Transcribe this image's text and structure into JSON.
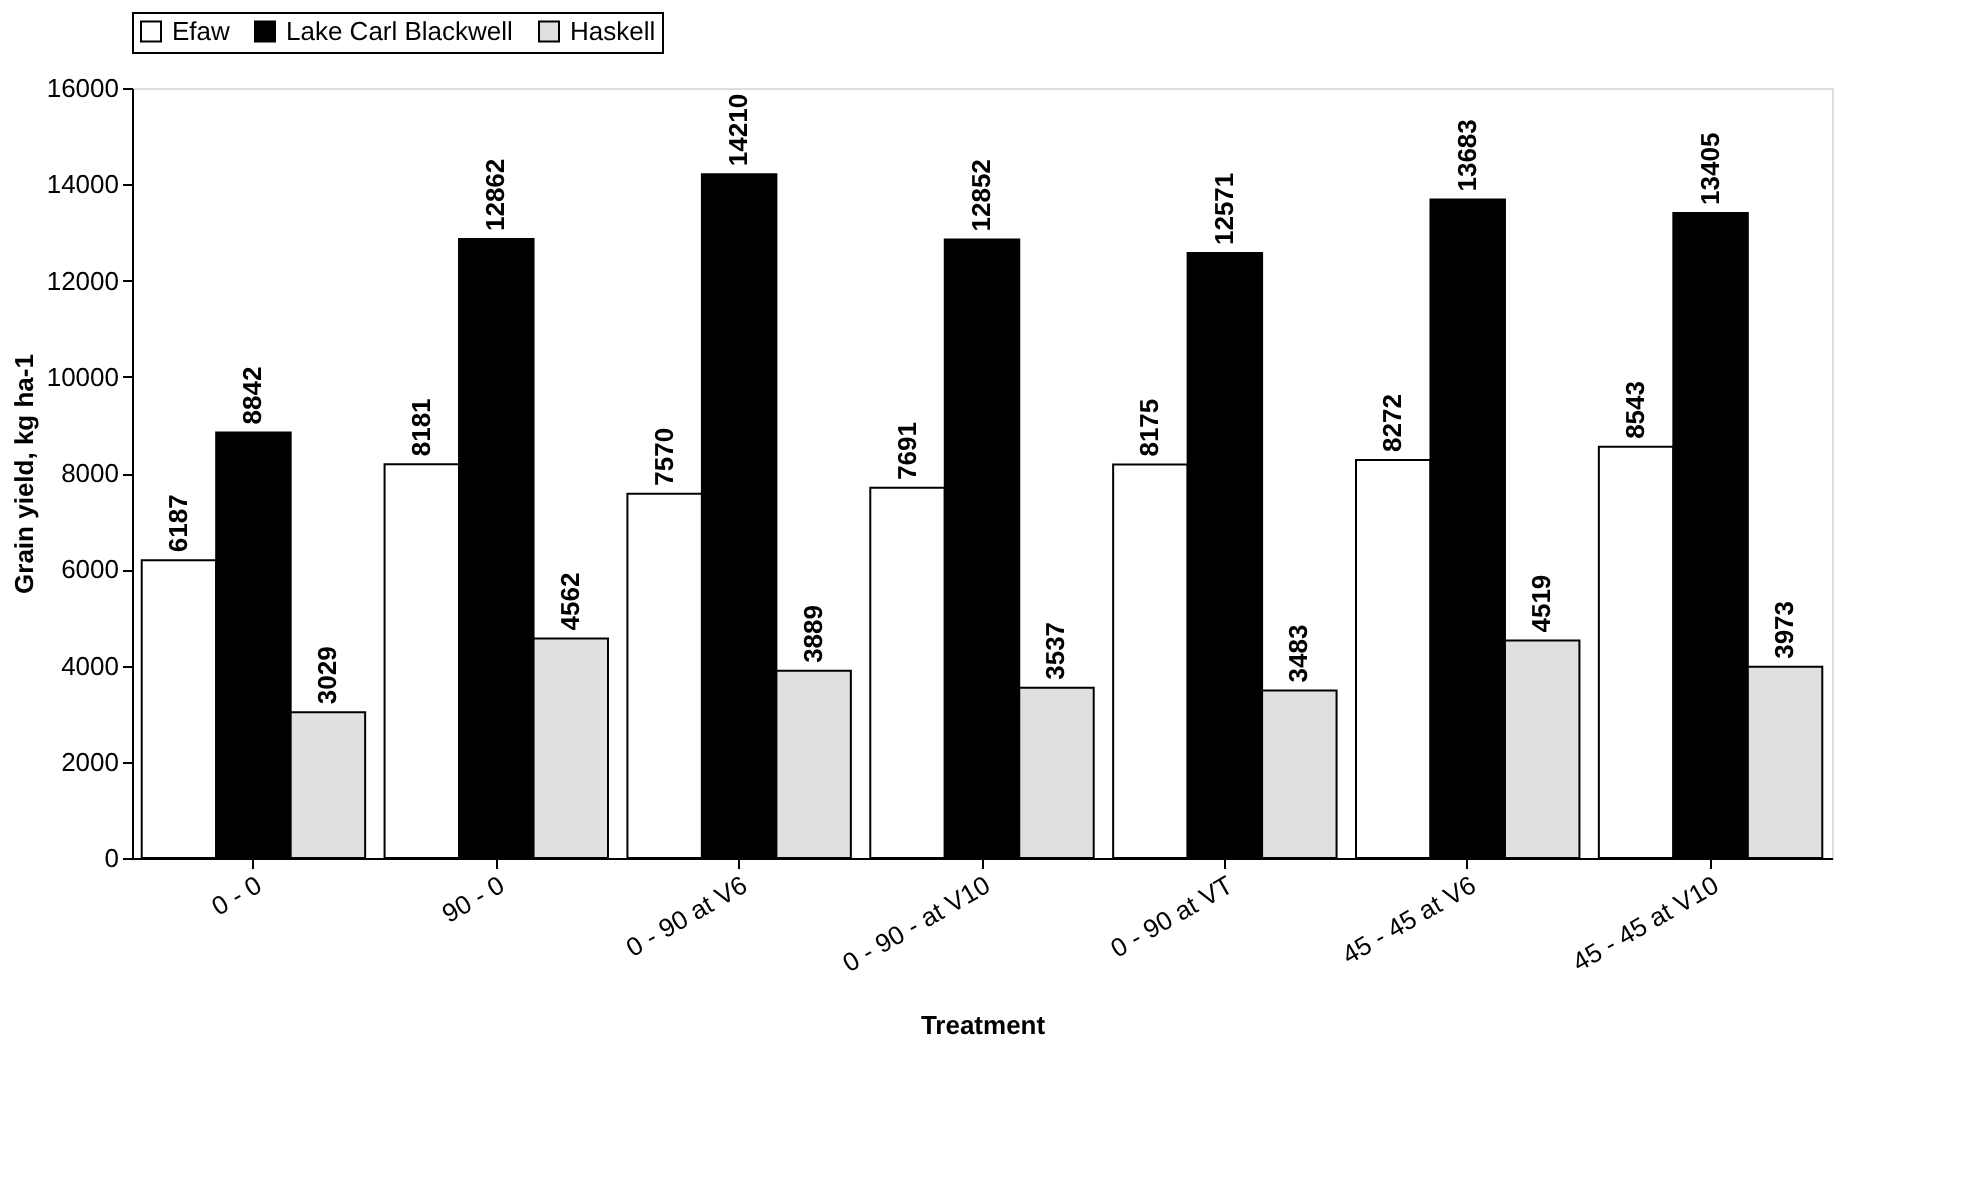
{
  "chart_data": {
    "type": "bar",
    "xlabel": "Treatment",
    "ylabel": "Grain yield, kg ha-1",
    "categories": [
      "0 - 0",
      "90 - 0",
      "0 - 90 at V6",
      "0 - 90 - at V10",
      "0 - 90 at VT",
      "45 - 45 at V6",
      "45 - 45 at V10"
    ],
    "series": [
      {
        "name": "Efaw",
        "color": "#ffffff",
        "values": [
          6187,
          8181,
          7570,
          7691,
          8175,
          8272,
          8543
        ]
      },
      {
        "name": "Lake Carl Blackwell",
        "color": "#000000",
        "values": [
          8842,
          12862,
          14210,
          12852,
          12571,
          13683,
          13405
        ]
      },
      {
        "name": "Haskell",
        "color": "#e0e0e0",
        "values": [
          3029,
          4562,
          3889,
          3537,
          3483,
          4519,
          3973
        ]
      }
    ],
    "ylim": [
      0,
      16000
    ],
    "yticks": [
      0,
      2000,
      4000,
      6000,
      8000,
      10000,
      12000,
      14000,
      16000
    ],
    "grid": false,
    "legend": "top",
    "data_labels": true
  }
}
